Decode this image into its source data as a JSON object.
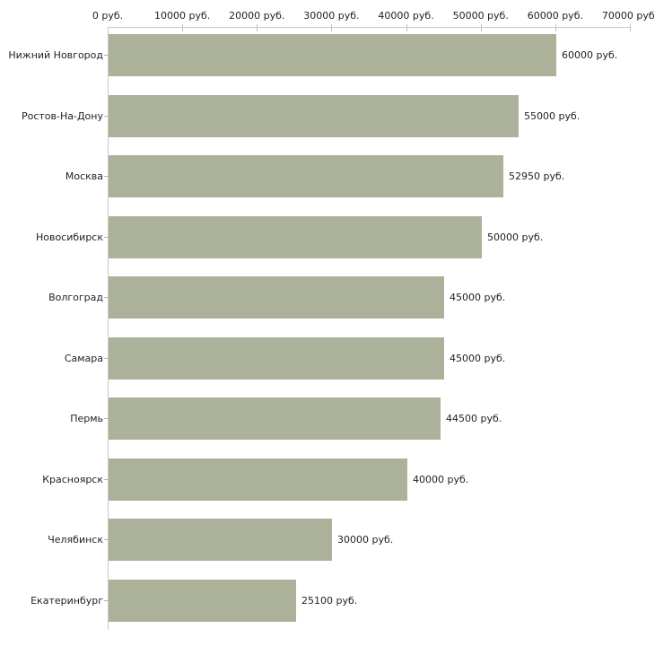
{
  "chart_data": {
    "type": "bar",
    "orientation": "horizontal",
    "categories": [
      "Нижний Новгород",
      "Ростов-На-Дону",
      "Москва",
      "Новосибирск",
      "Волгоград",
      "Самара",
      "Пермь",
      "Красноярск",
      "Челябинск",
      "Екатеринбург"
    ],
    "values": [
      60000,
      55000,
      52950,
      50000,
      45000,
      45000,
      44500,
      40000,
      30000,
      25100
    ],
    "value_labels": [
      "60000 руб.",
      "55000 руб.",
      "52950 руб.",
      "50000 руб.",
      "45000 руб.",
      "45000 руб.",
      "44500 руб.",
      "40000 руб.",
      "30000 руб.",
      "25100 руб."
    ],
    "x_axis": {
      "position": "top",
      "xlim": [
        0,
        70000
      ],
      "ticks": [
        0,
        10000,
        20000,
        30000,
        40000,
        50000,
        60000,
        70000
      ],
      "tick_labels": [
        "0 руб.",
        "10000 руб.",
        "20000 руб.",
        "30000 руб.",
        "40000 руб.",
        "50000 руб.",
        "60000 руб.",
        "70000 руб."
      ]
    },
    "grid": false,
    "legend": false,
    "colors": {
      "bar": "#acb199",
      "axis_line": "#c9c9c9",
      "tick_mark": "#c3c6a2",
      "text": "#1f1f1f"
    }
  }
}
